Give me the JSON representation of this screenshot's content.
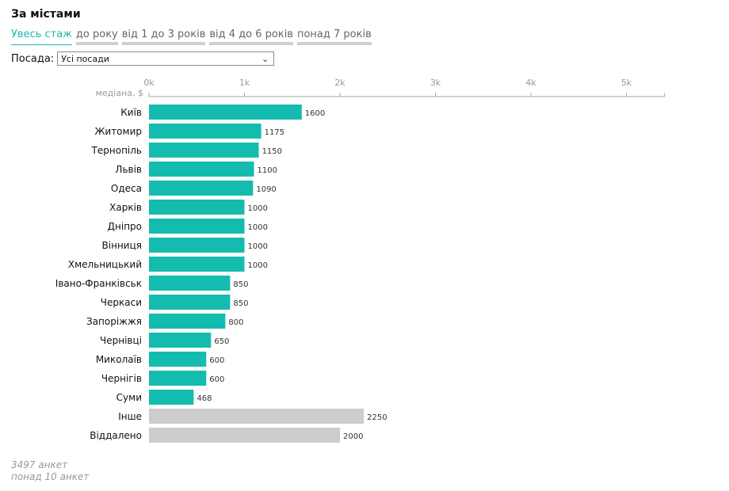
{
  "header": {
    "title": "За містами"
  },
  "tabs": [
    {
      "label": "Увесь стаж",
      "active": true
    },
    {
      "label": "до року",
      "active": false
    },
    {
      "label": "від 1 до 3 років",
      "active": false
    },
    {
      "label": "від 4 до 6 років",
      "active": false
    },
    {
      "label": "понад 7 років",
      "active": false
    }
  ],
  "filter": {
    "label": "Посада:",
    "selected": "Усі посади"
  },
  "footer": {
    "count": "3497 анкет",
    "note": "понад 10 анкет"
  },
  "colors": {
    "primary": "#14bcb0",
    "other": "#cccccc",
    "accent": "#1fb8aa"
  },
  "chart_data": {
    "type": "bar",
    "orientation": "horizontal",
    "title": "За містами",
    "xlabel": "медіана, $",
    "xlim": [
      0,
      5500
    ],
    "ticks": [
      {
        "value": 0,
        "label": "0k"
      },
      {
        "value": 1000,
        "label": "1k"
      },
      {
        "value": 2000,
        "label": "2k"
      },
      {
        "value": 3000,
        "label": "3k"
      },
      {
        "value": 4000,
        "label": "4k"
      },
      {
        "value": 5000,
        "label": "5k"
      }
    ],
    "categories": [
      "Київ",
      "Житомир",
      "Тернопіль",
      "Львів",
      "Одеса",
      "Харків",
      "Дніпро",
      "Вінниця",
      "Хмельницький",
      "Івано-Франківськ",
      "Черкаси",
      "Запоріжжя",
      "Чернівці",
      "Миколаїв",
      "Чернігів",
      "Суми",
      "Інше",
      "Віддалено"
    ],
    "values": [
      1600,
      1175,
      1150,
      1100,
      1090,
      1000,
      1000,
      1000,
      1000,
      850,
      850,
      800,
      650,
      600,
      600,
      468,
      2250,
      2000
    ],
    "highlight": [
      "primary",
      "primary",
      "primary",
      "primary",
      "primary",
      "primary",
      "primary",
      "primary",
      "primary",
      "primary",
      "primary",
      "primary",
      "primary",
      "primary",
      "primary",
      "primary",
      "other",
      "other"
    ]
  }
}
